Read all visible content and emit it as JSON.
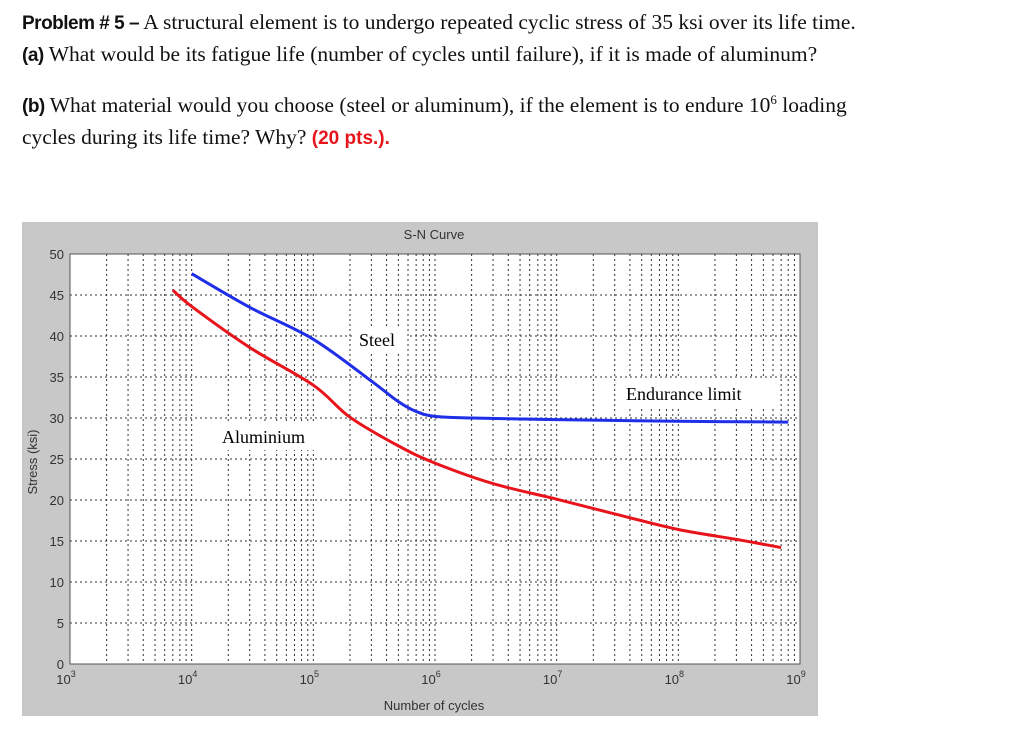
{
  "problem": {
    "heading": "Problem # 5 –",
    "line1": " A structural element is to undergo repeated cyclic stress of 35 ksi over its life time.",
    "part_a_label": "(a)",
    "part_a_text": " What would be its fatigue life (number of cycles until failure), if it is made of aluminum?",
    "part_b_label": "(b)",
    "part_b_text_1": " What material would you choose (steel or aluminum), if the element is to endure 10",
    "part_b_sup": "6",
    "part_b_text_2": " loading",
    "part_b_line2": "cycles during its life time? Why? ",
    "points": "(20 pts.)."
  },
  "chart_data": {
    "type": "line",
    "title": "S-N Curve",
    "xlabel": "Number of cycles",
    "ylabel": "Stress (ksi)",
    "xscale": "log",
    "xlim": [
      1000,
      1000000000
    ],
    "ylim": [
      0,
      50
    ],
    "xticks": [
      "10^3",
      "10^4",
      "10^5",
      "10^6",
      "10^7",
      "10^8",
      "10^9"
    ],
    "yticks": [
      0,
      5,
      10,
      15,
      20,
      25,
      30,
      35,
      40,
      45,
      50
    ],
    "grid": true,
    "background": "#c8c8c8",
    "series": [
      {
        "name": "Steel",
        "color": "#1f2ee8",
        "x": [
          10000,
          30000,
          100000,
          300000,
          500000,
          700000,
          1000000,
          2000000,
          10000000,
          100000000,
          800000000
        ],
        "y": [
          47.6,
          43.5,
          39.6,
          34.5,
          32,
          30.8,
          30.2,
          30.0,
          29.8,
          29.6,
          29.5
        ]
      },
      {
        "name": "Aluminium",
        "color": "#e8141b",
        "x": [
          7000,
          10000,
          30000,
          100000,
          200000,
          500000,
          1000000,
          3000000,
          10000000,
          30000000,
          100000000,
          300000000,
          700000000
        ],
        "y": [
          45.6,
          43.6,
          38.6,
          34.0,
          30.1,
          26.6,
          24.5,
          22.0,
          20.1,
          18.3,
          16.4,
          15.2,
          14.2
        ]
      }
    ],
    "annotations": [
      "Steel",
      "Aluminium",
      "Endurance limit"
    ]
  }
}
